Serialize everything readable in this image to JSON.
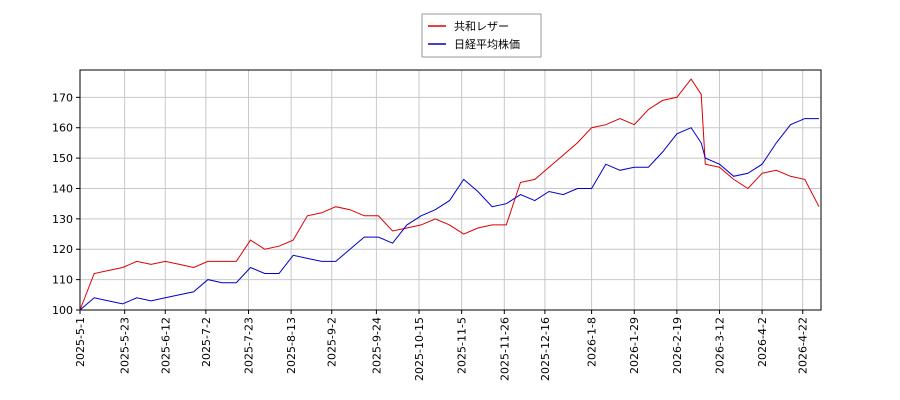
{
  "chart_data": {
    "type": "line",
    "x": [
      "2025-5-1",
      "2025-5-8",
      "2025-5-15",
      "2025-5-22",
      "2025-5-29",
      "2025-6-5",
      "2025-6-12",
      "2025-6-19",
      "2025-6-26",
      "2025-7-3",
      "2025-7-10",
      "2025-7-17",
      "2025-7-24",
      "2025-7-31",
      "2025-8-7",
      "2025-8-14",
      "2025-8-21",
      "2025-8-28",
      "2025-9-4",
      "2025-9-11",
      "2025-9-18",
      "2025-9-25",
      "2025-10-2",
      "2025-10-9",
      "2025-10-16",
      "2025-10-23",
      "2025-10-30",
      "2025-11-6",
      "2025-11-13",
      "2025-11-20",
      "2025-11-27",
      "2025-12-4",
      "2025-12-11",
      "2025-12-18",
      "2025-12-25",
      "2026-1-1",
      "2026-1-8",
      "2026-1-15",
      "2026-1-22",
      "2026-1-29",
      "2026-2-5",
      "2026-2-12",
      "2026-2-19",
      "2026-2-26",
      "2026-3-3",
      "2026-3-5",
      "2026-3-12",
      "2026-3-19",
      "2026-3-26",
      "2026-4-2",
      "2026-4-9",
      "2026-4-16",
      "2026-4-23",
      "2026-4-30"
    ],
    "series": [
      {
        "name": "共和レザー",
        "color": "#dd0000",
        "values": [
          100,
          112,
          113,
          114,
          116,
          115,
          116,
          115,
          114,
          116,
          116,
          116,
          123,
          120,
          121,
          123,
          131,
          132,
          134,
          133,
          131,
          131,
          126,
          127,
          128,
          130,
          128,
          125,
          127,
          128,
          128,
          142,
          143,
          147,
          151,
          155,
          160,
          161,
          163,
          161,
          166,
          169,
          170,
          176,
          171,
          148,
          147,
          143,
          140,
          145,
          146,
          144,
          143,
          134
        ]
      },
      {
        "name": "日経平均株価",
        "color": "#0000cc",
        "values": [
          100,
          104,
          103,
          102,
          104,
          103,
          104,
          105,
          106,
          110,
          109,
          109,
          114,
          112,
          112,
          118,
          117,
          116,
          116,
          120,
          124,
          124,
          122,
          128,
          131,
          133,
          136,
          143,
          139,
          134,
          135,
          138,
          136,
          139,
          138,
          140,
          140,
          148,
          146,
          147,
          147,
          152,
          158,
          160,
          155,
          150,
          148,
          144,
          145,
          148,
          155,
          161,
          163,
          163
        ]
      }
    ],
    "xlim": [
      "2025-5-1",
      "2026-5-1"
    ],
    "xticks": [
      "2025-5-1",
      "2025-5-23",
      "2025-6-12",
      "2025-7-2",
      "2025-7-23",
      "2025-8-13",
      "2025-9-2",
      "2025-9-24",
      "2025-10-15",
      "2025-11-5",
      "2025-11-26",
      "2025-12-16",
      "2026-1-8",
      "2026-1-29",
      "2026-2-19",
      "2026-3-12",
      "2026-4-2",
      "2026-4-22"
    ],
    "ylim": [
      100,
      179
    ],
    "yticks": [
      100,
      110,
      120,
      130,
      140,
      150,
      160,
      170
    ],
    "grid": true
  }
}
